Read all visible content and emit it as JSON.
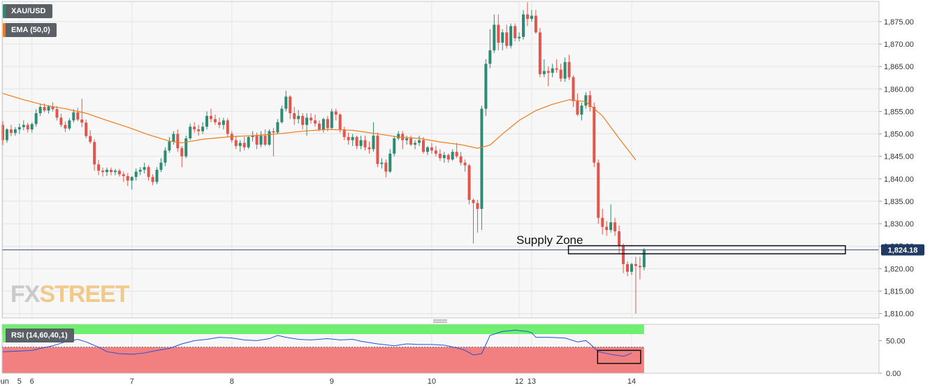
{
  "legend": {
    "symbol": "XAU/USD",
    "ema_label": "EMA (50,0)",
    "rsi_label": "RSI (14,60,40,1)"
  },
  "watermark": {
    "part1": "FX",
    "part2": "STREET"
  },
  "colors": {
    "up": "#2e8b73",
    "down": "#e0564c",
    "ema": "#f07a1c",
    "rsi_line": "#2450d8",
    "rsi_upper_zone": "#6df06d",
    "rsi_lower_zone": "#f38080",
    "supply_zone_border": "#111111",
    "current_price_badge": "#1f3a63",
    "symbol_stripe": "#2e8b73",
    "ema_stripe": "#f07a1c",
    "rsi_stripe": "#6df06d"
  },
  "chart_data": {
    "type": "candlestick",
    "symbol": "XAU/USD",
    "current_price": 1824.18,
    "current_price_label": "1,824.18",
    "annotation": {
      "text": "Supply Zone",
      "price_low": 1823.3,
      "price_high": 1825.1
    },
    "ylim": [
      1809,
      1879.5
    ],
    "y_ticks": [
      1810,
      1815,
      1820,
      1825,
      1830,
      1835,
      1840,
      1845,
      1850,
      1855,
      1860,
      1865,
      1870,
      1875
    ],
    "y_tick_labels": [
      "1,810.00",
      "1,815.00",
      "1,820.00",
      "1,825.00",
      "1,830.00",
      "1,835.00",
      "1,840.00",
      "1,845.00",
      "1,850.00",
      "1,855.00",
      "1,860.00",
      "1,865.00",
      "1,870.00",
      "1,875.00"
    ],
    "x_tick_labels": [
      {
        "label": "Jun",
        "bar": 0
      },
      {
        "label": "5",
        "bar": 4
      },
      {
        "label": "6",
        "bar": 7
      },
      {
        "label": "7",
        "bar": 31
      },
      {
        "label": "8",
        "bar": 55
      },
      {
        "label": "9",
        "bar": 79
      },
      {
        "label": "10",
        "bar": 103
      },
      {
        "label": "12",
        "bar": 124
      },
      {
        "label": "13",
        "bar": 127
      },
      {
        "label": "14",
        "bar": 151
      }
    ],
    "candles": [
      [
        1852.0,
        1852.8,
        1847.5,
        1848.6
      ],
      [
        1848.6,
        1851.3,
        1848.0,
        1851.0
      ],
      [
        1851.0,
        1852.0,
        1849.5,
        1850.2
      ],
      [
        1850.2,
        1851.5,
        1849.6,
        1851.0
      ],
      [
        1851.0,
        1852.3,
        1850.0,
        1851.5
      ],
      [
        1851.5,
        1853.0,
        1850.8,
        1852.0
      ],
      [
        1852.0,
        1852.5,
        1850.3,
        1851.0
      ],
      [
        1851.0,
        1852.5,
        1850.3,
        1852.2
      ],
      [
        1852.2,
        1855.5,
        1851.6,
        1854.6
      ],
      [
        1854.6,
        1856.6,
        1854.0,
        1856.0
      ],
      [
        1856.0,
        1856.8,
        1854.8,
        1855.2
      ],
      [
        1855.2,
        1856.4,
        1854.5,
        1856.1
      ],
      [
        1856.1,
        1857.0,
        1855.0,
        1855.5
      ],
      [
        1855.5,
        1856.2,
        1853.0,
        1853.6
      ],
      [
        1853.6,
        1854.5,
        1851.5,
        1852.0
      ],
      [
        1852.0,
        1852.8,
        1850.4,
        1851.2
      ],
      [
        1851.2,
        1853.5,
        1850.8,
        1853.0
      ],
      [
        1853.0,
        1855.5,
        1852.5,
        1854.8
      ],
      [
        1854.8,
        1855.8,
        1852.8,
        1853.2
      ],
      [
        1853.2,
        1857.8,
        1851.5,
        1852.5
      ],
      [
        1852.5,
        1853.2,
        1849.0,
        1849.5
      ],
      [
        1849.5,
        1850.8,
        1847.8,
        1848.2
      ],
      [
        1848.2,
        1848.8,
        1841.8,
        1843.2
      ],
      [
        1843.2,
        1844.2,
        1840.8,
        1841.8
      ],
      [
        1841.8,
        1842.5,
        1840.5,
        1841.5
      ],
      [
        1841.5,
        1842.5,
        1840.6,
        1842.0
      ],
      [
        1842.0,
        1842.5,
        1840.8,
        1841.5
      ],
      [
        1841.5,
        1842.2,
        1840.8,
        1841.8
      ],
      [
        1841.8,
        1842.2,
        1840.5,
        1841.0
      ],
      [
        1841.0,
        1841.6,
        1839.3,
        1840.6
      ],
      [
        1840.6,
        1841.3,
        1838.4,
        1839.6
      ],
      [
        1839.6,
        1840.6,
        1837.6,
        1840.4
      ],
      [
        1840.4,
        1842.3,
        1839.6,
        1841.6
      ],
      [
        1841.6,
        1842.6,
        1840.8,
        1842.0
      ],
      [
        1842.0,
        1843.6,
        1841.2,
        1842.6
      ],
      [
        1842.6,
        1843.0,
        1839.6,
        1840.4
      ],
      [
        1840.4,
        1841.0,
        1838.6,
        1839.3
      ],
      [
        1839.3,
        1842.6,
        1838.8,
        1842.0
      ],
      [
        1842.0,
        1844.6,
        1841.5,
        1843.6
      ],
      [
        1843.6,
        1847.0,
        1842.8,
        1846.3
      ],
      [
        1846.3,
        1849.3,
        1845.8,
        1848.3
      ],
      [
        1848.3,
        1850.6,
        1847.6,
        1850.0
      ],
      [
        1850.0,
        1851.0,
        1846.0,
        1846.8
      ],
      [
        1846.8,
        1847.3,
        1842.6,
        1845.0
      ],
      [
        1845.0,
        1849.6,
        1844.6,
        1849.0
      ],
      [
        1849.0,
        1852.3,
        1848.6,
        1851.6
      ],
      [
        1851.6,
        1852.6,
        1850.3,
        1851.0
      ],
      [
        1851.0,
        1852.0,
        1849.6,
        1850.6
      ],
      [
        1850.6,
        1852.6,
        1850.0,
        1851.6
      ],
      [
        1851.6,
        1855.0,
        1851.0,
        1854.0
      ],
      [
        1854.0,
        1855.6,
        1852.6,
        1853.3
      ],
      [
        1853.3,
        1854.3,
        1852.0,
        1852.6
      ],
      [
        1852.6,
        1853.6,
        1851.3,
        1852.0
      ],
      [
        1852.0,
        1853.6,
        1851.0,
        1853.0
      ],
      [
        1853.0,
        1853.5,
        1849.3,
        1850.0
      ],
      [
        1850.0,
        1850.6,
        1848.0,
        1848.6
      ],
      [
        1848.6,
        1849.6,
        1846.6,
        1847.3
      ],
      [
        1847.3,
        1848.6,
        1846.0,
        1848.0
      ],
      [
        1848.0,
        1849.3,
        1846.3,
        1847.0
      ],
      [
        1847.0,
        1849.6,
        1846.6,
        1849.3
      ],
      [
        1849.3,
        1850.6,
        1848.3,
        1849.6
      ],
      [
        1849.6,
        1850.3,
        1846.6,
        1847.6
      ],
      [
        1847.6,
        1850.6,
        1847.0,
        1849.6
      ],
      [
        1849.6,
        1851.0,
        1847.3,
        1847.6
      ],
      [
        1847.6,
        1851.0,
        1847.3,
        1850.6
      ],
      [
        1850.6,
        1851.3,
        1845.0,
        1850.3
      ],
      [
        1850.3,
        1853.3,
        1850.0,
        1852.6
      ],
      [
        1852.6,
        1856.3,
        1852.3,
        1855.6
      ],
      [
        1855.6,
        1859.6,
        1855.0,
        1858.3
      ],
      [
        1858.3,
        1858.6,
        1853.3,
        1854.6
      ],
      [
        1854.6,
        1856.0,
        1852.0,
        1853.3
      ],
      [
        1853.3,
        1855.3,
        1852.3,
        1854.0
      ],
      [
        1854.0,
        1854.6,
        1851.0,
        1852.0
      ],
      [
        1852.0,
        1854.6,
        1849.6,
        1853.6
      ],
      [
        1853.6,
        1854.6,
        1852.3,
        1853.0
      ],
      [
        1853.0,
        1854.3,
        1851.6,
        1852.3
      ],
      [
        1852.3,
        1853.0,
        1850.6,
        1851.0
      ],
      [
        1851.0,
        1853.6,
        1850.3,
        1853.3
      ],
      [
        1853.3,
        1854.0,
        1850.6,
        1851.3
      ],
      [
        1851.3,
        1855.6,
        1851.0,
        1855.0
      ],
      [
        1855.0,
        1855.6,
        1853.0,
        1854.3
      ],
      [
        1854.3,
        1854.6,
        1850.3,
        1851.0
      ],
      [
        1851.0,
        1851.6,
        1848.6,
        1849.3
      ],
      [
        1849.3,
        1850.3,
        1847.6,
        1848.6
      ],
      [
        1848.6,
        1850.0,
        1847.3,
        1849.3
      ],
      [
        1849.3,
        1849.6,
        1846.6,
        1847.3
      ],
      [
        1847.3,
        1849.6,
        1846.6,
        1848.6
      ],
      [
        1848.6,
        1849.6,
        1846.3,
        1847.0
      ],
      [
        1847.0,
        1848.3,
        1845.6,
        1846.6
      ],
      [
        1846.6,
        1852.6,
        1846.0,
        1849.6
      ],
      [
        1849.6,
        1850.3,
        1842.6,
        1843.3
      ],
      [
        1843.3,
        1844.6,
        1842.3,
        1843.6
      ],
      [
        1843.6,
        1844.3,
        1840.3,
        1841.6
      ],
      [
        1841.6,
        1846.6,
        1841.3,
        1845.6
      ],
      [
        1845.6,
        1849.6,
        1845.0,
        1849.0
      ],
      [
        1849.0,
        1850.6,
        1848.6,
        1850.0
      ],
      [
        1850.0,
        1850.6,
        1846.6,
        1848.6
      ],
      [
        1848.6,
        1849.6,
        1847.6,
        1849.0
      ],
      [
        1849.0,
        1849.6,
        1847.3,
        1847.6
      ],
      [
        1847.6,
        1848.6,
        1846.6,
        1848.0
      ],
      [
        1848.0,
        1849.6,
        1847.3,
        1848.6
      ],
      [
        1848.6,
        1849.3,
        1845.6,
        1846.0
      ],
      [
        1846.0,
        1847.3,
        1845.3,
        1847.0
      ],
      [
        1847.0,
        1848.0,
        1845.6,
        1846.3
      ],
      [
        1846.3,
        1847.3,
        1845.0,
        1845.6
      ],
      [
        1845.6,
        1846.6,
        1844.0,
        1844.6
      ],
      [
        1844.6,
        1846.0,
        1843.6,
        1845.3
      ],
      [
        1845.3,
        1845.6,
        1843.6,
        1844.3
      ],
      [
        1844.3,
        1846.6,
        1844.0,
        1846.0
      ],
      [
        1846.0,
        1848.0,
        1844.6,
        1845.0
      ],
      [
        1845.0,
        1846.0,
        1843.0,
        1843.6
      ],
      [
        1843.6,
        1844.3,
        1841.6,
        1843.0
      ],
      [
        1843.0,
        1843.3,
        1834.3,
        1835.3
      ],
      [
        1835.3,
        1835.6,
        1825.6,
        1834.6
      ],
      [
        1834.6,
        1835.3,
        1828.0,
        1833.3
      ],
      [
        1833.3,
        1856.3,
        1828.6,
        1855.6
      ],
      [
        1855.6,
        1866.6,
        1854.0,
        1865.6
      ],
      [
        1865.6,
        1873.3,
        1864.6,
        1868.6
      ],
      [
        1868.6,
        1876.6,
        1868.0,
        1874.3
      ],
      [
        1874.3,
        1876.6,
        1868.6,
        1870.3
      ],
      [
        1870.3,
        1873.3,
        1868.6,
        1872.6
      ],
      [
        1872.6,
        1874.3,
        1869.0,
        1869.6
      ],
      [
        1869.6,
        1874.6,
        1869.0,
        1874.0
      ],
      [
        1874.0,
        1874.6,
        1870.6,
        1871.3
      ],
      [
        1871.3,
        1872.6,
        1870.6,
        1871.6
      ],
      [
        1871.6,
        1877.6,
        1871.0,
        1876.6
      ],
      [
        1876.6,
        1879.3,
        1874.0,
        1875.6
      ],
      [
        1875.6,
        1877.6,
        1875.0,
        1876.3
      ],
      [
        1876.3,
        1877.6,
        1872.3,
        1872.6
      ],
      [
        1872.6,
        1873.6,
        1862.6,
        1863.3
      ],
      [
        1863.3,
        1866.6,
        1862.6,
        1864.0
      ],
      [
        1864.0,
        1865.0,
        1860.6,
        1863.6
      ],
      [
        1863.6,
        1865.6,
        1862.6,
        1864.6
      ],
      [
        1864.6,
        1866.6,
        1863.6,
        1864.3
      ],
      [
        1864.3,
        1865.6,
        1861.6,
        1862.3
      ],
      [
        1862.3,
        1867.0,
        1861.6,
        1866.0
      ],
      [
        1866.0,
        1867.6,
        1862.0,
        1862.6
      ],
      [
        1862.6,
        1863.0,
        1856.0,
        1857.3
      ],
      [
        1857.3,
        1859.0,
        1854.0,
        1854.3
      ],
      [
        1854.3,
        1857.0,
        1853.0,
        1856.3
      ],
      [
        1856.3,
        1859.3,
        1855.6,
        1858.6
      ],
      [
        1858.6,
        1859.6,
        1855.0,
        1856.0
      ],
      [
        1856.0,
        1857.0,
        1842.6,
        1843.6
      ],
      [
        1843.6,
        1844.3,
        1830.0,
        1831.3
      ],
      [
        1831.3,
        1833.3,
        1827.6,
        1829.3
      ],
      [
        1829.3,
        1830.6,
        1827.3,
        1828.6
      ],
      [
        1828.6,
        1834.3,
        1828.0,
        1830.3
      ],
      [
        1830.3,
        1831.3,
        1827.3,
        1828.3
      ],
      [
        1828.3,
        1829.6,
        1823.3,
        1825.0
      ],
      [
        1825.0,
        1825.6,
        1819.0,
        1821.0
      ],
      [
        1821.0,
        1821.6,
        1818.3,
        1819.3
      ],
      [
        1819.3,
        1821.3,
        1818.6,
        1821.0
      ],
      [
        1821.0,
        1822.6,
        1810.0,
        1820.6
      ],
      [
        1820.6,
        1822.6,
        1817.6,
        1820.3
      ],
      [
        1820.3,
        1824.6,
        1819.6,
        1824.2
      ]
    ],
    "ema_50": [
      [
        0,
        1859.0
      ],
      [
        5,
        1857.6
      ],
      [
        10,
        1856.4
      ],
      [
        15,
        1855.6
      ],
      [
        20,
        1854.6
      ],
      [
        25,
        1853.0
      ],
      [
        30,
        1851.5
      ],
      [
        35,
        1849.8
      ],
      [
        40,
        1848.4
      ],
      [
        43,
        1848.0
      ],
      [
        48,
        1848.8
      ],
      [
        55,
        1849.4
      ],
      [
        60,
        1849.6
      ],
      [
        66,
        1850.0
      ],
      [
        72,
        1850.6
      ],
      [
        78,
        1851.0
      ],
      [
        84,
        1850.8
      ],
      [
        90,
        1850.0
      ],
      [
        95,
        1849.3
      ],
      [
        100,
        1849.0
      ],
      [
        105,
        1848.2
      ],
      [
        110,
        1847.6
      ],
      [
        114,
        1846.8
      ],
      [
        117,
        1847.5
      ],
      [
        120,
        1850.0
      ],
      [
        124,
        1853.0
      ],
      [
        128,
        1855.2
      ],
      [
        132,
        1856.6
      ],
      [
        136,
        1857.6
      ],
      [
        140,
        1857.2
      ],
      [
        144,
        1854.0
      ],
      [
        148,
        1849.0
      ],
      [
        152,
        1844.2
      ]
    ],
    "rsi": {
      "label": "RSI (14,60,40,1)",
      "ylim": [
        0,
        75
      ],
      "y_ticks": [
        0,
        50
      ],
      "y_tick_labels": [
        "0.00",
        "50.00"
      ],
      "upper": 60,
      "lower": 40,
      "values": [
        [
          0,
          33
        ],
        [
          4,
          34
        ],
        [
          7,
          35
        ],
        [
          9,
          38
        ],
        [
          12,
          42
        ],
        [
          15,
          48
        ],
        [
          18,
          52
        ],
        [
          20,
          48
        ],
        [
          23,
          40
        ],
        [
          25,
          33
        ],
        [
          28,
          30
        ],
        [
          31,
          29
        ],
        [
          34,
          31
        ],
        [
          37,
          35
        ],
        [
          40,
          38
        ],
        [
          43,
          45
        ],
        [
          46,
          50
        ],
        [
          49,
          52
        ],
        [
          52,
          55
        ],
        [
          55,
          54
        ],
        [
          58,
          51
        ],
        [
          61,
          50
        ],
        [
          64,
          53
        ],
        [
          66,
          58
        ],
        [
          68,
          55
        ],
        [
          71,
          52
        ],
        [
          74,
          51
        ],
        [
          78,
          53
        ],
        [
          81,
          51
        ],
        [
          84,
          52
        ],
        [
          86,
          49
        ],
        [
          90,
          45
        ],
        [
          94,
          42
        ],
        [
          97,
          45
        ],
        [
          100,
          44
        ],
        [
          103,
          44
        ],
        [
          106,
          43
        ],
        [
          109,
          39
        ],
        [
          111,
          35
        ],
        [
          113,
          28
        ],
        [
          115,
          30
        ],
        [
          117,
          58
        ],
        [
          120,
          64
        ],
        [
          123,
          66
        ],
        [
          126,
          64
        ],
        [
          127,
          62
        ],
        [
          128,
          55
        ],
        [
          131,
          55
        ],
        [
          135,
          54
        ],
        [
          138,
          48
        ],
        [
          140,
          50
        ],
        [
          141,
          45
        ],
        [
          143,
          33
        ],
        [
          146,
          29
        ],
        [
          149,
          26
        ],
        [
          150,
          28
        ],
        [
          151,
          31
        ]
      ]
    }
  }
}
